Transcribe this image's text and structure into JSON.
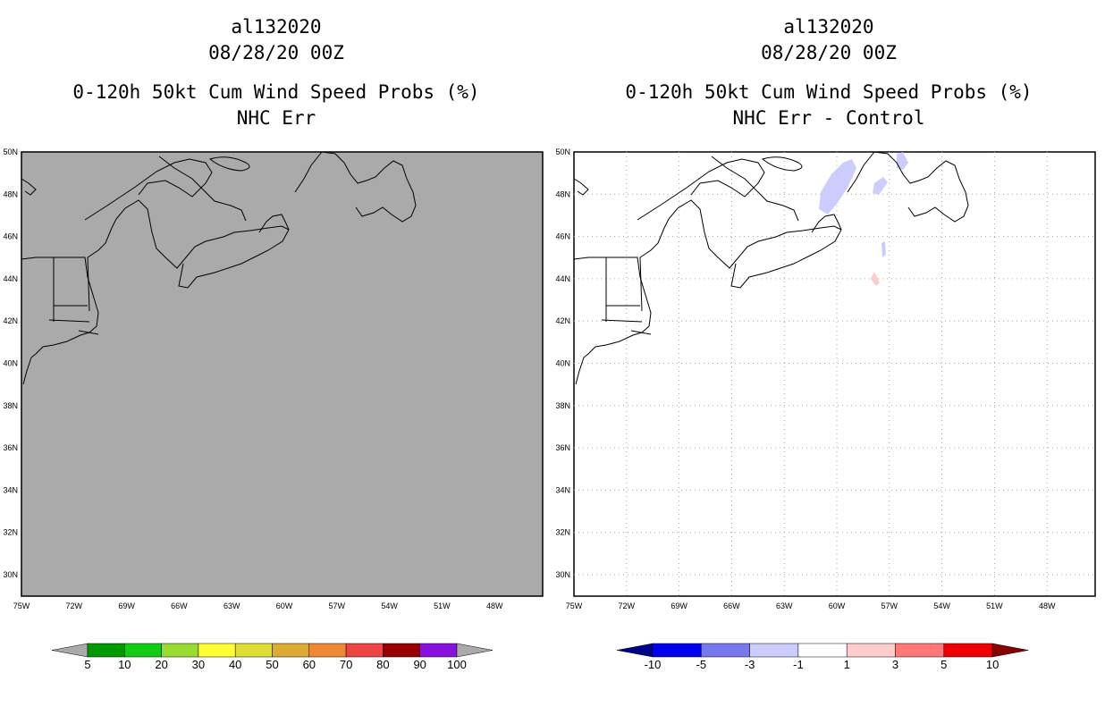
{
  "left": {
    "storm_id": "al132020",
    "date": "08/28/20 00Z",
    "product": "0-120h 50kt Cum Wind Speed Probs (%)",
    "subtitle": "NHC Err",
    "background": "#aaaaaa"
  },
  "right": {
    "storm_id": "al132020",
    "date": "08/28/20 00Z",
    "product": "0-120h 50kt Cum Wind Speed Probs (%)",
    "subtitle": "NHC Err - Control",
    "background": "#ffffff"
  },
  "lat_labels": [
    "50N",
    "48N",
    "46N",
    "44N",
    "42N",
    "40N",
    "38N",
    "36N",
    "34N",
    "32N",
    "30N"
  ],
  "lon_labels": [
    "75W",
    "72W",
    "69W",
    "66W",
    "63W",
    "60W",
    "57W",
    "54W",
    "51W",
    "48W"
  ],
  "left_colorbar": {
    "labels": [
      "5",
      "10",
      "20",
      "30",
      "40",
      "50",
      "60",
      "70",
      "80",
      "90",
      "100"
    ],
    "colors": [
      "#009900",
      "#11cc11",
      "#99dd33",
      "#ffff33",
      "#dddd33",
      "#ddaa33",
      "#ee8833",
      "#ee4444",
      "#990000",
      "#8811dd"
    ],
    "end_under": "#aaaaaa",
    "end_over": "#aaaaaa"
  },
  "right_colorbar": {
    "labels": [
      "-10",
      "-5",
      "-3",
      "-1",
      "1",
      "3",
      "5",
      "10"
    ],
    "colors": [
      "#0000ee",
      "#7777ee",
      "#ccccff",
      "#ffffff",
      "#ffcccc",
      "#ff7777",
      "#ee0000"
    ],
    "end_under": "#000088",
    "end_over": "#880000"
  }
}
